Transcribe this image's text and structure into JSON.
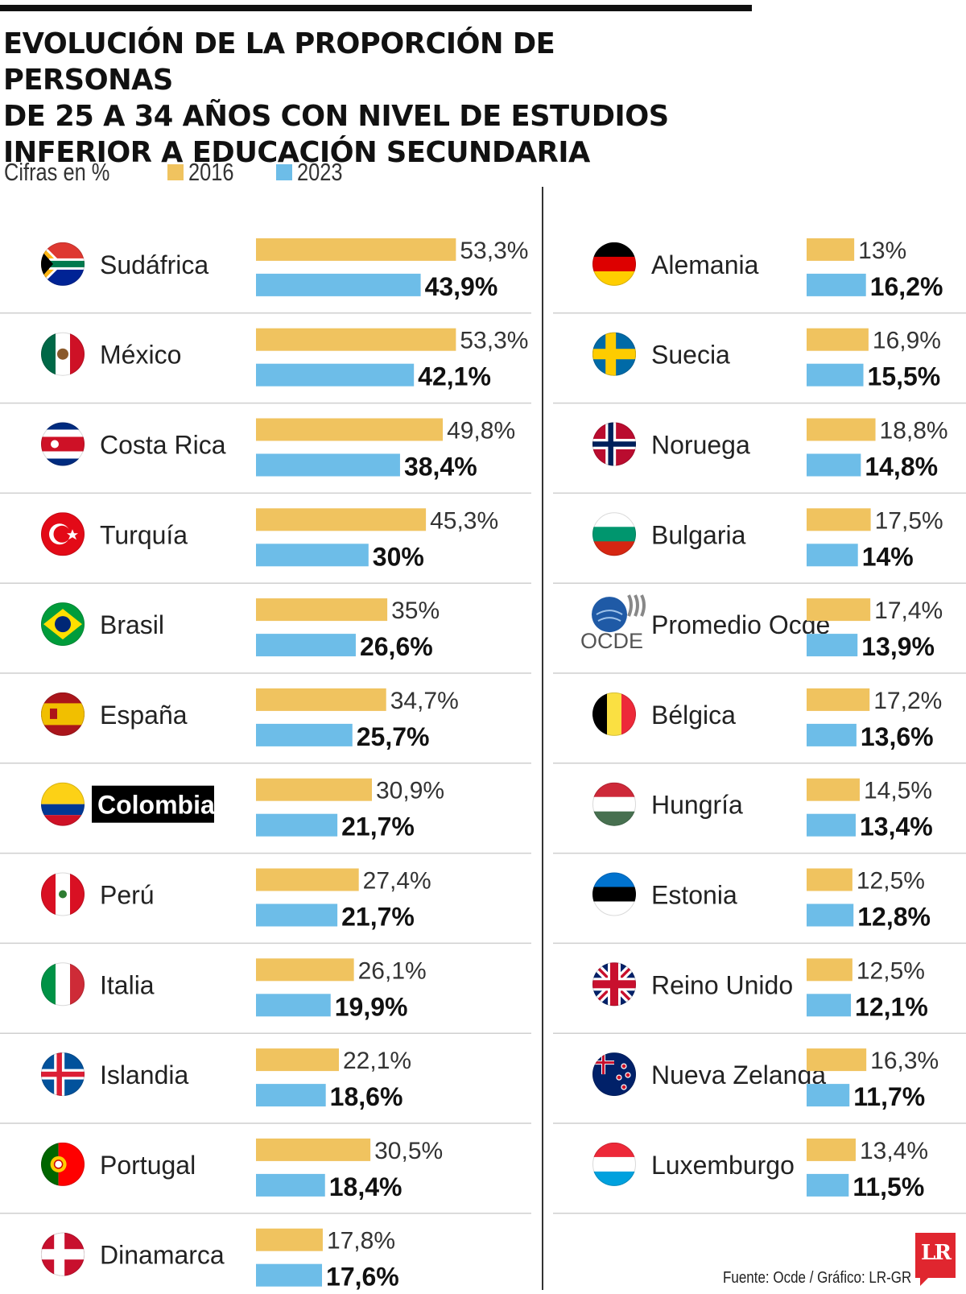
{
  "title_lines": [
    "EVOLUCIÓN DE LA PROPORCIÓN DE PERSONAS",
    "DE 25 A 34 AÑOS CON NIVEL DE ESTUDIOS",
    "INFERIOR A EDUCACIÓN SECUNDARIA"
  ],
  "subtitle": "Cifras en %",
  "legend": [
    {
      "label": "2016",
      "color": "#f0c35f"
    },
    {
      "label": "2023",
      "color": "#6dbde8"
    }
  ],
  "source": "Fuente: Ocde / Gráfico: LR-GR",
  "logo_text": "LR",
  "chart_data": {
    "type": "bar",
    "orientation": "horizontal",
    "series_names": [
      "2016",
      "2023"
    ],
    "colors": {
      "2016": "#f0c35f",
      "2023": "#6dbde8"
    },
    "highlight": "Colombia",
    "columns": [
      [
        {
          "name": "Sudáfrica",
          "flag": "south-africa",
          "v2016": 53.3,
          "l2016": "53,3%",
          "v2023": 43.9,
          "l2023": "43,9%"
        },
        {
          "name": "México",
          "flag": "mexico",
          "v2016": 53.3,
          "l2016": "53,3%",
          "v2023": 42.1,
          "l2023": "42,1%"
        },
        {
          "name": "Costa Rica",
          "flag": "costa-rica",
          "v2016": 49.8,
          "l2016": "49,8%",
          "v2023": 38.4,
          "l2023": "38,4%"
        },
        {
          "name": "Turquía",
          "flag": "turkey",
          "v2016": 45.3,
          "l2016": "45,3%",
          "v2023": 30,
          "l2023": "30%"
        },
        {
          "name": "Brasil",
          "flag": "brazil",
          "v2016": 35,
          "l2016": "35%",
          "v2023": 26.6,
          "l2023": "26,6%"
        },
        {
          "name": "España",
          "flag": "spain",
          "v2016": 34.7,
          "l2016": "34,7%",
          "v2023": 25.7,
          "l2023": "25,7%"
        },
        {
          "name": "Colombia",
          "flag": "colombia",
          "v2016": 30.9,
          "l2016": "30,9%",
          "v2023": 21.7,
          "l2023": "21,7%"
        },
        {
          "name": "Perú",
          "flag": "peru",
          "v2016": 27.4,
          "l2016": "27,4%",
          "v2023": 21.7,
          "l2023": "21,7%"
        },
        {
          "name": "Italia",
          "flag": "italy",
          "v2016": 26.1,
          "l2016": "26,1%",
          "v2023": 19.9,
          "l2023": "19,9%"
        },
        {
          "name": "Islandia",
          "flag": "iceland",
          "v2016": 22.1,
          "l2016": "22,1%",
          "v2023": 18.6,
          "l2023": "18,6%"
        },
        {
          "name": "Portugal",
          "flag": "portugal",
          "v2016": 30.5,
          "l2016": "30,5%",
          "v2023": 18.4,
          "l2023": "18,4%"
        },
        {
          "name": "Dinamarca",
          "flag": "denmark",
          "v2016": 17.8,
          "l2016": "17,8%",
          "v2023": 17.6,
          "l2023": "17,6%"
        }
      ],
      [
        {
          "name": "Alemania",
          "flag": "germany",
          "v2016": 13,
          "l2016": "13%",
          "v2023": 16.2,
          "l2023": "16,2%"
        },
        {
          "name": "Suecia",
          "flag": "sweden",
          "v2016": 16.9,
          "l2016": "16,9%",
          "v2023": 15.5,
          "l2023": "15,5%"
        },
        {
          "name": "Noruega",
          "flag": "norway",
          "v2016": 18.8,
          "l2016": "18,8%",
          "v2023": 14.8,
          "l2023": "14,8%"
        },
        {
          "name": "Bulgaria",
          "flag": "bulgaria",
          "v2016": 17.5,
          "l2016": "17,5%",
          "v2023": 14,
          "l2023": "14%"
        },
        {
          "name": "Promedio Ocde",
          "flag": "oecd",
          "flag_text": "OCDE",
          "v2016": 17.4,
          "l2016": "17,4%",
          "v2023": 13.9,
          "l2023": "13,9%"
        },
        {
          "name": "Bélgica",
          "flag": "belgium",
          "v2016": 17.2,
          "l2016": "17,2%",
          "v2023": 13.6,
          "l2023": "13,6%"
        },
        {
          "name": "Hungría",
          "flag": "hungary",
          "v2016": 14.5,
          "l2016": "14,5%",
          "v2023": 13.4,
          "l2023": "13,4%"
        },
        {
          "name": "Estonia",
          "flag": "estonia",
          "v2016": 12.5,
          "l2016": "12,5%",
          "v2023": 12.8,
          "l2023": "12,8%"
        },
        {
          "name": "Reino Unido",
          "flag": "united-kingdom",
          "v2016": 12.5,
          "l2016": "12,5%",
          "v2023": 12.1,
          "l2023": "12,1%"
        },
        {
          "name": "Nueva Zelanda",
          "flag": "new-zealand",
          "v2016": 16.3,
          "l2016": "16,3%",
          "v2023": 11.7,
          "l2023": "11,7%"
        },
        {
          "name": "Luxemburgo",
          "flag": "luxembourg",
          "v2016": 13.4,
          "l2016": "13,4%",
          "v2023": 11.5,
          "l2023": "11,5%"
        }
      ]
    ]
  }
}
